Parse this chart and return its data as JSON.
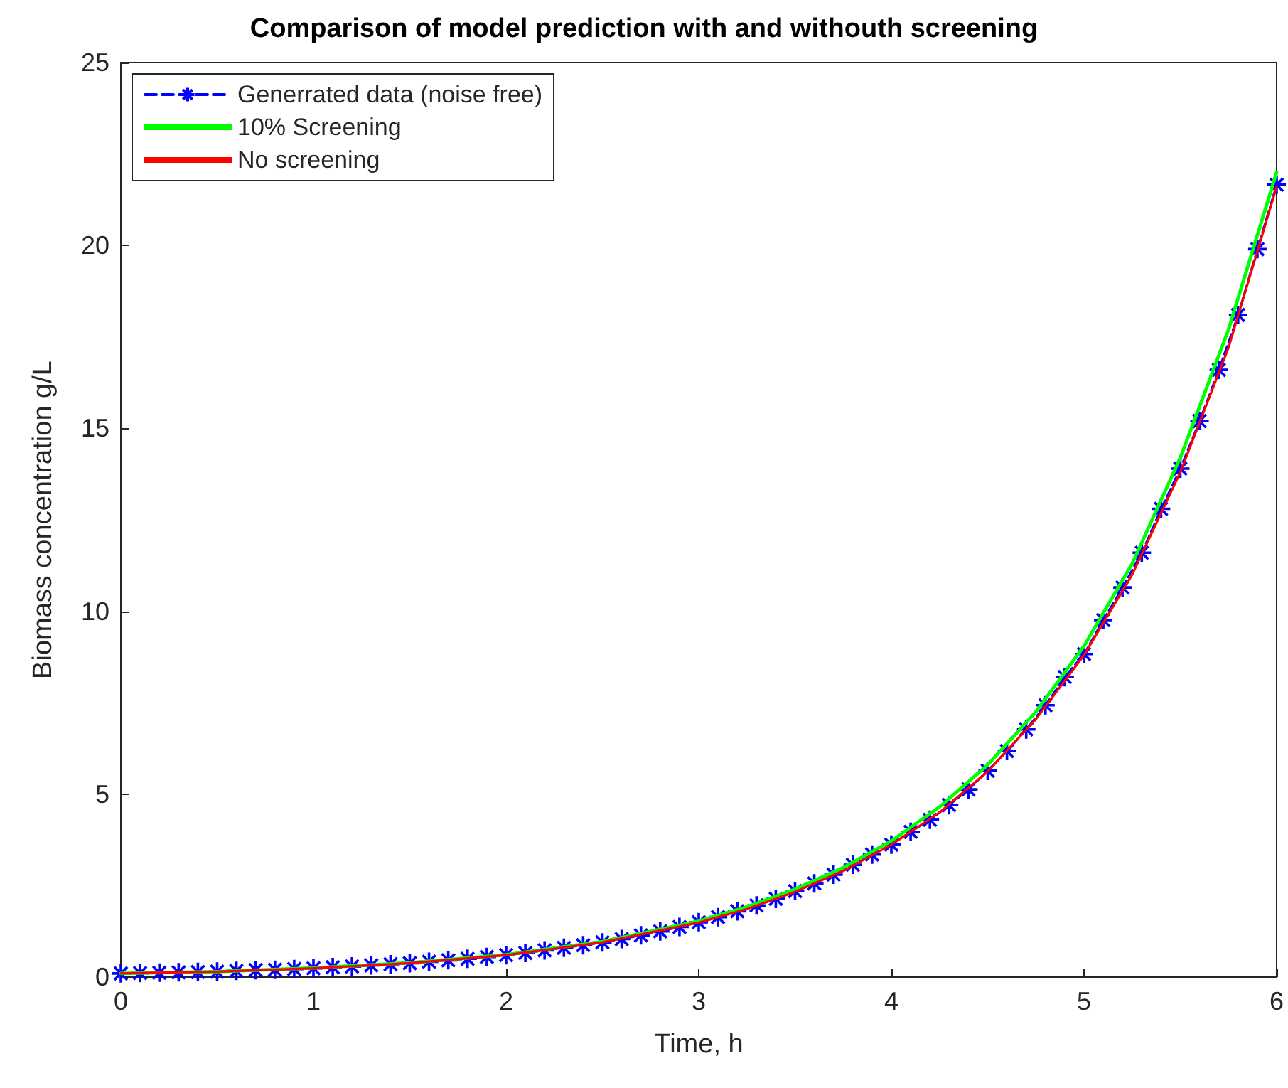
{
  "chart_data": {
    "type": "line",
    "title": "Comparison of model prediction with and withouth screening",
    "xlabel": "Time, h",
    "ylabel": "Biomass concentration g/L",
    "xlim": [
      0,
      6
    ],
    "xticks": [
      0,
      1,
      2,
      3,
      4,
      5,
      6
    ],
    "ylim": [
      0,
      25
    ],
    "yticks": [
      0,
      5,
      10,
      15,
      20,
      25
    ],
    "grid": false,
    "legend": "top left",
    "x": [
      0,
      0.1,
      0.2,
      0.3,
      0.4,
      0.5,
      0.6,
      0.7,
      0.8,
      0.9,
      1,
      1.1,
      1.2,
      1.3,
      1.4,
      1.5,
      1.6,
      1.7,
      1.8,
      1.9,
      2,
      2.1,
      2.2,
      2.3,
      2.4,
      2.5,
      2.6,
      2.7,
      2.8,
      2.9,
      3,
      3.1,
      3.2,
      3.3,
      3.4,
      3.5,
      3.6,
      3.7,
      3.8,
      3.9,
      4,
      4.1,
      4.2,
      4.3,
      4.4,
      4.5,
      4.6,
      4.7,
      4.8,
      4.9,
      5,
      5.1,
      5.2,
      5.3,
      5.4,
      5.5,
      5.6,
      5.7,
      5.8,
      5.9,
      6
    ],
    "series": [
      {
        "name": "Generrated data (noise free)",
        "color": "#0000ff",
        "marker": "cross",
        "line_style": "dashed",
        "values": [
          0.1,
          0.11,
          0.12,
          0.13,
          0.14,
          0.15,
          0.17,
          0.19,
          0.2,
          0.22,
          0.24,
          0.27,
          0.29,
          0.32,
          0.35,
          0.38,
          0.42,
          0.46,
          0.5,
          0.55,
          0.6,
          0.66,
          0.73,
          0.8,
          0.87,
          0.95,
          1.04,
          1.14,
          1.25,
          1.37,
          1.5,
          1.64,
          1.8,
          1.96,
          2.14,
          2.35,
          2.56,
          2.8,
          3.07,
          3.35,
          3.62,
          3.97,
          4.3,
          4.7,
          5.13,
          5.64,
          6.18,
          6.77,
          7.43,
          8.2,
          8.83,
          9.76,
          10.65,
          11.6,
          12.8,
          13.9,
          15.2,
          16.6,
          18.1,
          19.9,
          21.66
        ]
      },
      {
        "name": "10% Screening",
        "color": "#00ff00",
        "marker": "none",
        "line_style": "solid",
        "x": [
          0,
          0.5,
          1,
          1.5,
          2,
          2.5,
          3,
          3.25,
          3.5,
          3.75,
          4,
          4.25,
          4.5,
          4.75,
          5,
          5.25,
          5.5,
          5.75,
          6
        ],
        "values": [
          0.1,
          0.15,
          0.25,
          0.39,
          0.61,
          0.97,
          1.53,
          1.92,
          2.4,
          2.99,
          3.72,
          4.65,
          5.8,
          7.25,
          9.05,
          11.3,
          14.2,
          17.7,
          22.0
        ]
      },
      {
        "name": "No screening",
        "color": "#ff0000",
        "marker": "none",
        "line_style": "solid",
        "x": [
          0,
          0.5,
          1,
          1.5,
          2,
          2.5,
          3,
          3.25,
          3.5,
          3.75,
          4,
          4.25,
          4.5,
          4.75,
          5,
          5.25,
          5.5,
          5.75,
          6
        ],
        "values": [
          0.1,
          0.15,
          0.24,
          0.38,
          0.6,
          0.95,
          1.49,
          1.86,
          2.33,
          2.9,
          3.62,
          4.5,
          5.62,
          7.05,
          8.8,
          11.0,
          13.8,
          17.2,
          21.6
        ]
      }
    ]
  }
}
